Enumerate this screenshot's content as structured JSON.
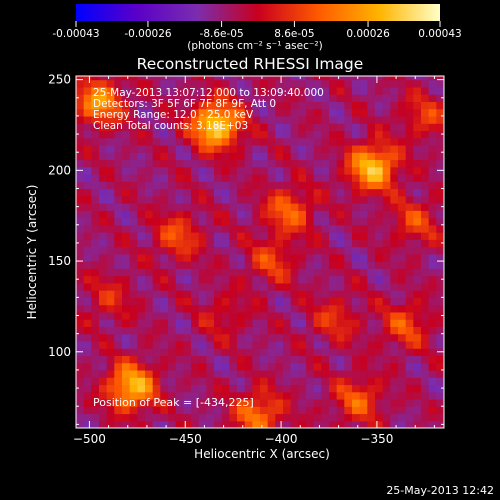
{
  "colorbar": {
    "tick_labels": [
      "-0.00043",
      "-0.00026",
      "-8.6e-05",
      "8.6e-05",
      "0.00026",
      "0.00043"
    ],
    "tick_values": [
      -0.00043,
      -0.00026,
      -8.6e-05,
      8.6e-05,
      0.00026,
      0.00043
    ],
    "range": [
      -0.00043,
      0.00043
    ],
    "unit_label": "(photons cm⁻² s⁻¹ asec⁻²)",
    "colors": [
      "#0000ff",
      "#5a00c8",
      "#7b2dae",
      "#c8001e",
      "#ff5a00",
      "#ffb400",
      "#ffffc8"
    ]
  },
  "chart_data": {
    "type": "heatmap",
    "title": "Reconstructed RHESSI Image",
    "xlabel": "Heliocentric X (arcsec)",
    "ylabel": "Heliocentric Y (arcsec)",
    "xlim": [
      -507,
      -315
    ],
    "ylim": [
      58,
      252
    ],
    "x_ticks": [
      -500,
      -450,
      -400,
      -350
    ],
    "y_ticks": [
      100,
      150,
      200,
      250
    ],
    "grid": false,
    "info_lines": [
      "25-May-2013 13:07:12.000 to 13:09:40.000",
      "Detectors: 3F 5F 6F 7F 8F 9F, Att 0",
      "Energy Range: 12.0 - 25.0 keV",
      "Clean    Total counts: 3.18E+03"
    ],
    "peak_label": "Position of Peak = [-434,225]",
    "sources": [
      {
        "x": -434,
        "y": 225,
        "value": 0.00043
      },
      {
        "x": -352,
        "y": 202,
        "value": 0.00038
      },
      {
        "x": -478,
        "y": 81,
        "value": 0.00037
      },
      {
        "x": -495,
        "y": 238,
        "value": 0.0003
      },
      {
        "x": -396,
        "y": 178,
        "value": 0.00022
      },
      {
        "x": -412,
        "y": 66,
        "value": 0.00025
      },
      {
        "x": -454,
        "y": 164,
        "value": 0.00018
      },
      {
        "x": -330,
        "y": 172,
        "value": 0.00016
      },
      {
        "x": -335,
        "y": 115,
        "value": 0.00018
      },
      {
        "x": -372,
        "y": 118,
        "value": 0.00014
      },
      {
        "x": -405,
        "y": 150,
        "value": 0.00016
      },
      {
        "x": -360,
        "y": 74,
        "value": 0.0002
      },
      {
        "x": -490,
        "y": 130,
        "value": 0.00012
      },
      {
        "x": -430,
        "y": 120,
        "value": 0.0001
      },
      {
        "x": -325,
        "y": 230,
        "value": 0.00015
      }
    ]
  },
  "footer": {
    "timestamp": "25-May-2013 12:42"
  }
}
